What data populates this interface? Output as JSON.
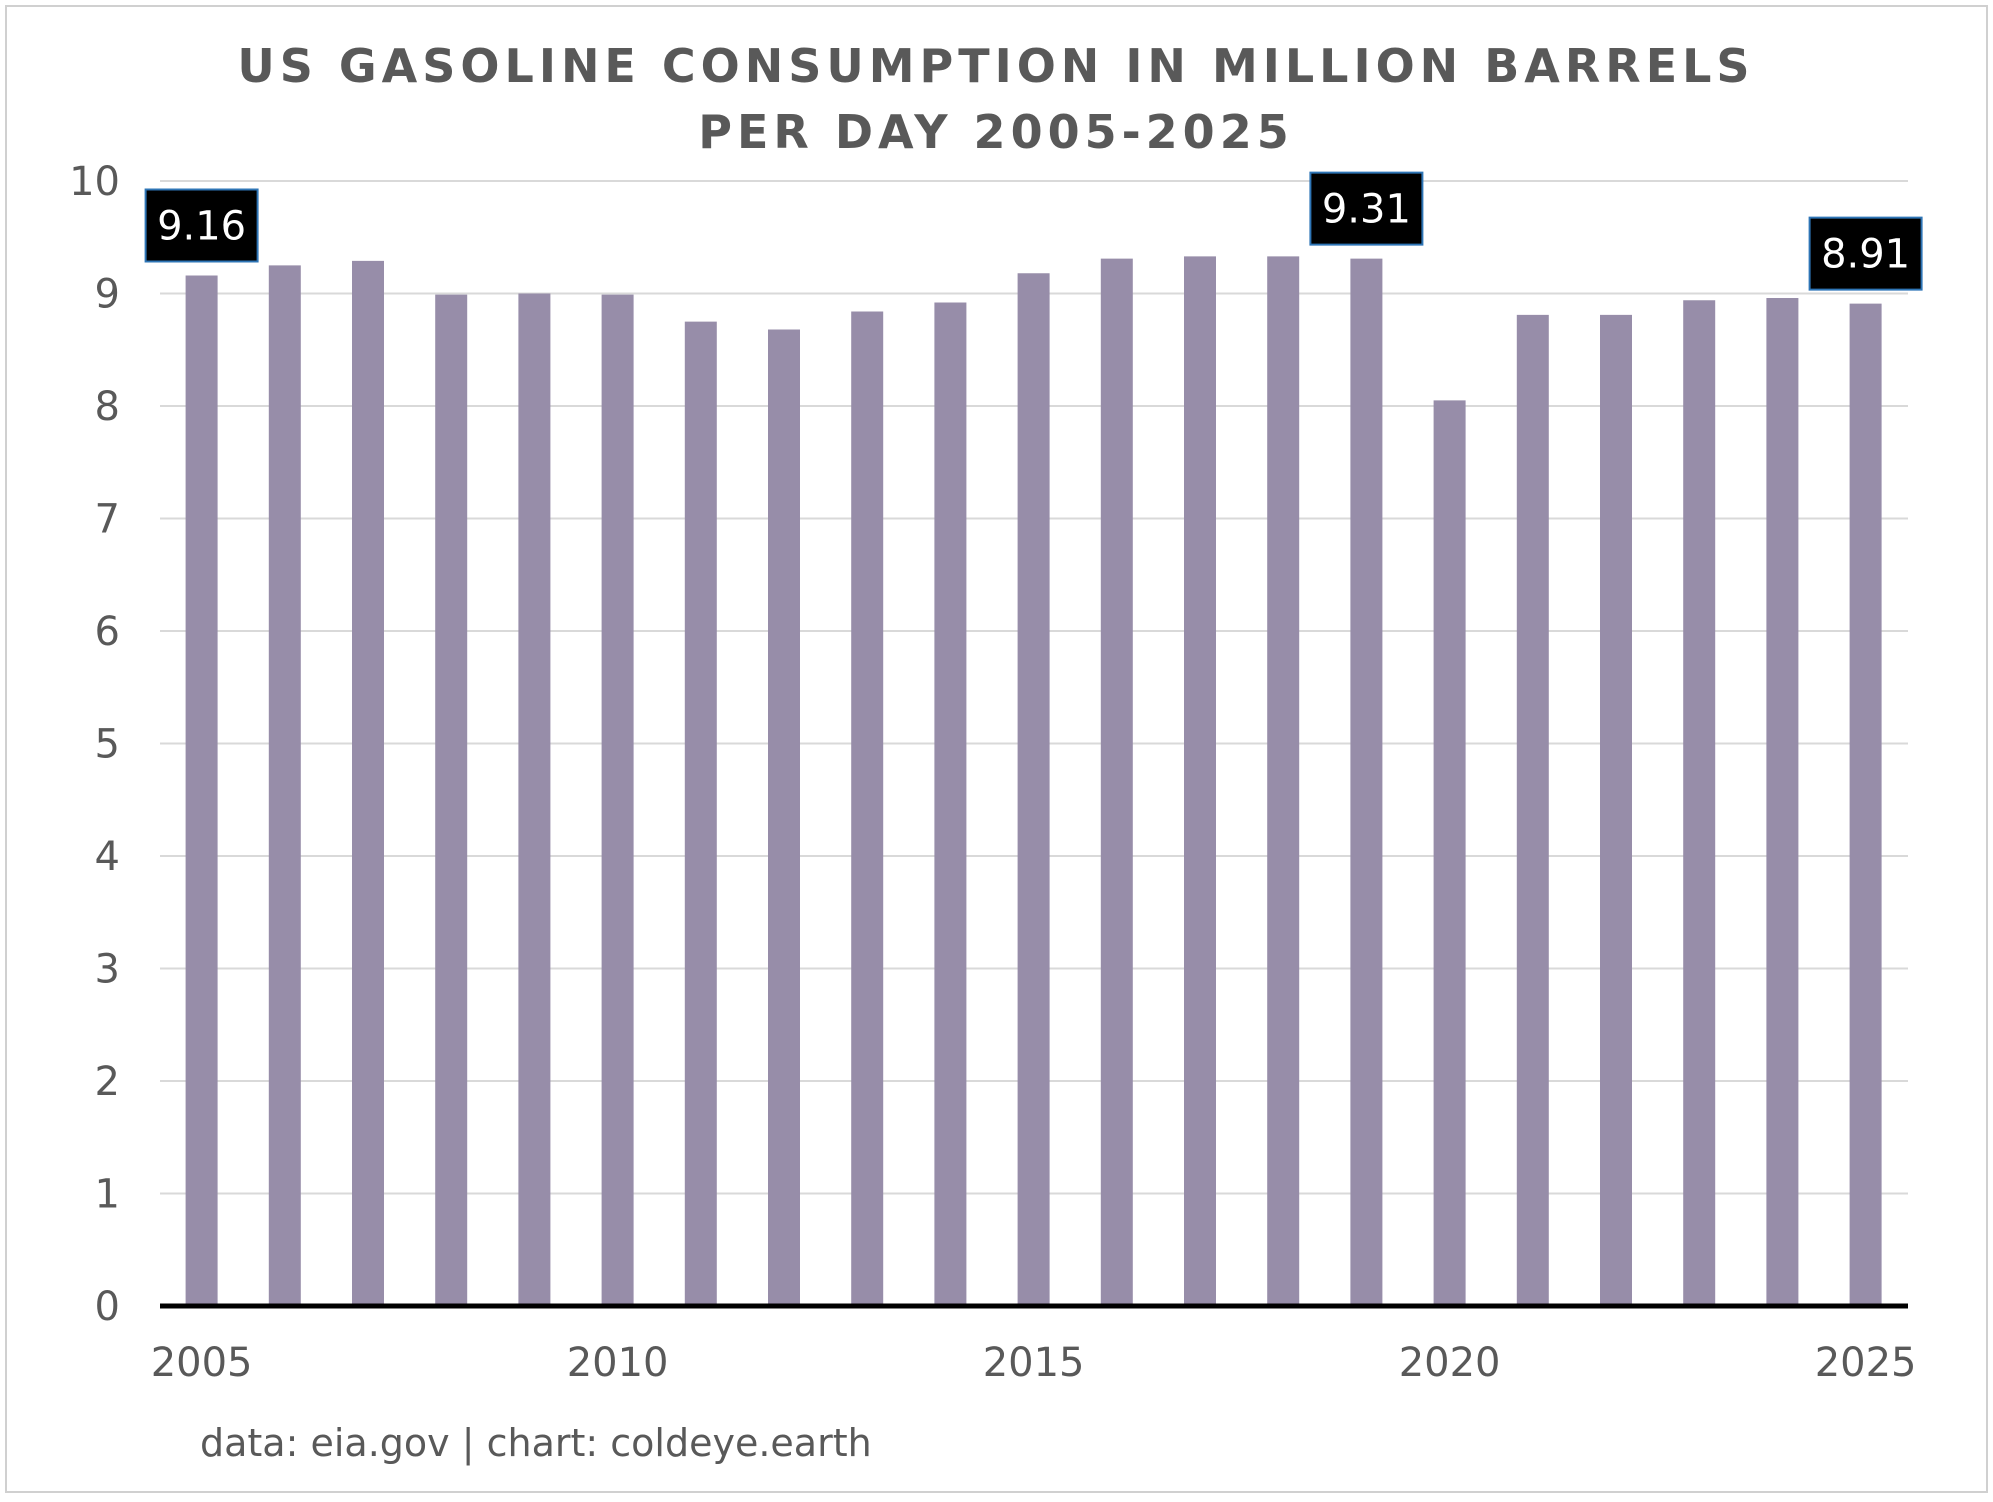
{
  "chart_data": {
    "type": "bar",
    "title_lines": [
      "US GASOLINE CONSUMPTION IN MILLION BARRELS",
      "PER DAY 2005-2025"
    ],
    "categories": [
      "2005",
      "2006",
      "2007",
      "2008",
      "2009",
      "2010",
      "2011",
      "2012",
      "2013",
      "2014",
      "2015",
      "2016",
      "2017",
      "2018",
      "2019",
      "2020",
      "2021",
      "2022",
      "2023",
      "2024",
      "2025"
    ],
    "values": [
      9.16,
      9.25,
      9.29,
      8.99,
      9.0,
      8.99,
      8.75,
      8.68,
      8.84,
      8.92,
      9.18,
      9.31,
      9.33,
      9.33,
      9.31,
      8.05,
      8.81,
      8.81,
      8.94,
      8.96,
      8.91
    ],
    "x_tick_labels": [
      "2005",
      "2010",
      "2015",
      "2020",
      "2025"
    ],
    "y_tick_labels": [
      "0",
      "1",
      "2",
      "3",
      "4",
      "5",
      "6",
      "7",
      "8",
      "9",
      "10"
    ],
    "ylim": [
      0,
      10
    ],
    "grid": true,
    "xlabel": "",
    "ylabel": "",
    "annotations": [
      {
        "category": "2005",
        "text": "9.16"
      },
      {
        "category": "2019",
        "text": "9.31"
      },
      {
        "category": "2025",
        "text": "8.91"
      }
    ],
    "source_note": "data: eia.gov | chart: coldeye.earth",
    "colors": {
      "bar": "#978da9",
      "grid": "#d9d9d9",
      "axis": "#000000",
      "text": "#595959",
      "label_bg": "#000000",
      "label_border": "#2e75b6",
      "label_text": "#ffffff",
      "frame": "#d0d0d0"
    }
  }
}
